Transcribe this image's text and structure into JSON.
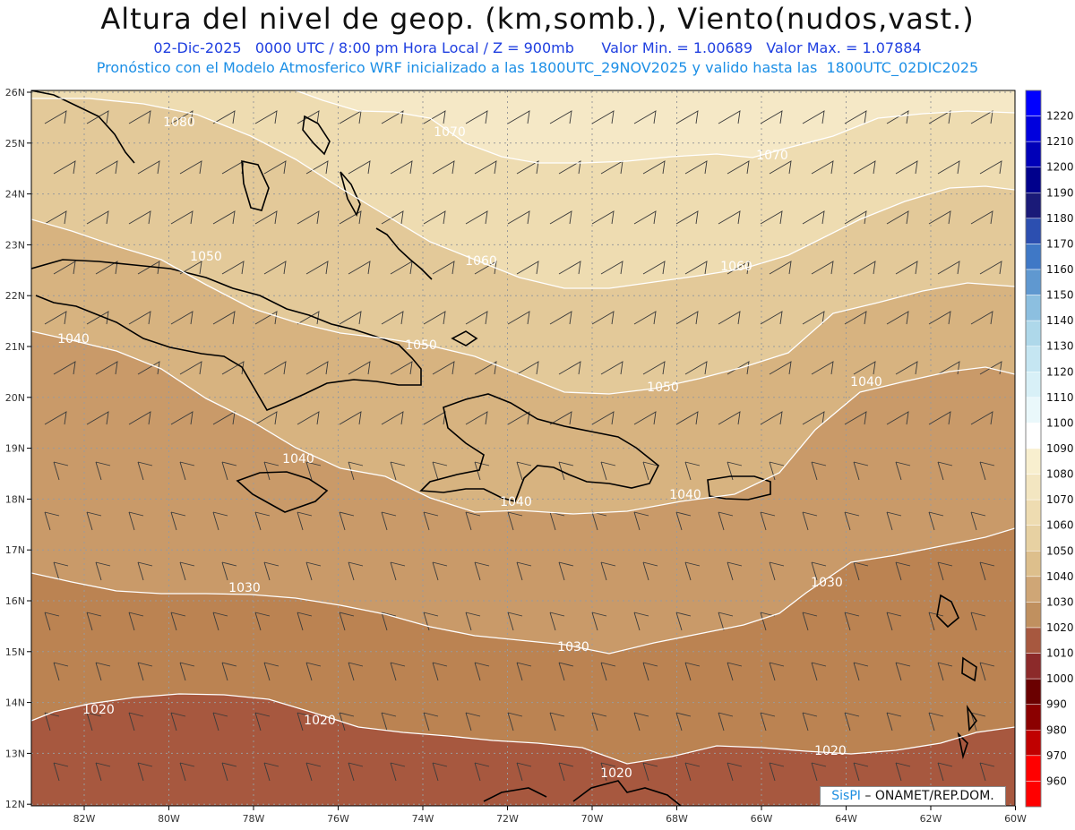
{
  "header": {
    "title": "Altura del nivel de geop. (km,somb.), Viento(nudos,vast.)",
    "subtitle": "02-Dic-2025   0000 UTC / 8:00 pm Hora Local / Z = 900mb      Valor Min. = 1.00689   Valor Max. = 1.07884",
    "model_info": "Pronóstico con el Modelo Atmosferico WRF inicializado a las 1800UTC_29NOV2025 y valido hasta las  1800UTC_02DIC2025"
  },
  "map": {
    "lat_labels": [
      "26N",
      "25N",
      "24N",
      "23N",
      "22N",
      "21N",
      "20N",
      "19N",
      "18N",
      "17N",
      "16N",
      "15N",
      "14N",
      "13N",
      "12N"
    ],
    "lon_labels": [
      "82W",
      "80W",
      "78W",
      "76W",
      "74W",
      "72W",
      "70W",
      "68W",
      "66W",
      "64W",
      "62W",
      "60W"
    ],
    "contour_labels": [
      "1080",
      "1070",
      "1070",
      "1060",
      "1060",
      "1050",
      "1050",
      "1050",
      "1040",
      "1040",
      "1040",
      "1040",
      "1040",
      "1030",
      "1030",
      "1030",
      "1020",
      "1020",
      "1020",
      "1020"
    ],
    "fill_colors": [
      "#fbf3dc",
      "#f5e8c6",
      "#eedcb1",
      "#e3c999",
      "#d7b380",
      "#c99a69",
      "#bb8352",
      "#a7583f"
    ]
  },
  "colorbar": {
    "labels": [
      "1220",
      "1210",
      "1200",
      "1190",
      "1180",
      "1170",
      "1160",
      "1150",
      "1140",
      "1130",
      "1120",
      "1110",
      "1100",
      "1090",
      "1080",
      "1070",
      "1060",
      "1050",
      "1040",
      "1030",
      "1020",
      "1010",
      "1000",
      "990",
      "980",
      "970",
      "960"
    ],
    "colors": [
      "#0000ff",
      "#0000dd",
      "#0000b8",
      "#00008c",
      "#1a1a78",
      "#2c4fb0",
      "#3f78c6",
      "#5f98d0",
      "#8cbfe0",
      "#aed8ea",
      "#c5e6f2",
      "#d8f0f7",
      "#eaf8fb",
      "#ffffff",
      "#f8efcf",
      "#f3e6c1",
      "#eedcb1",
      "#e7d1a2",
      "#ddbf8c",
      "#cfa676",
      "#c0905f",
      "#a7583f",
      "#8c2a2a",
      "#6a0000",
      "#8b0000",
      "#c00000",
      "#ff0000"
    ]
  },
  "credit": {
    "brand": "SisPI",
    "text": "– ONAMET/REP.DOM."
  }
}
